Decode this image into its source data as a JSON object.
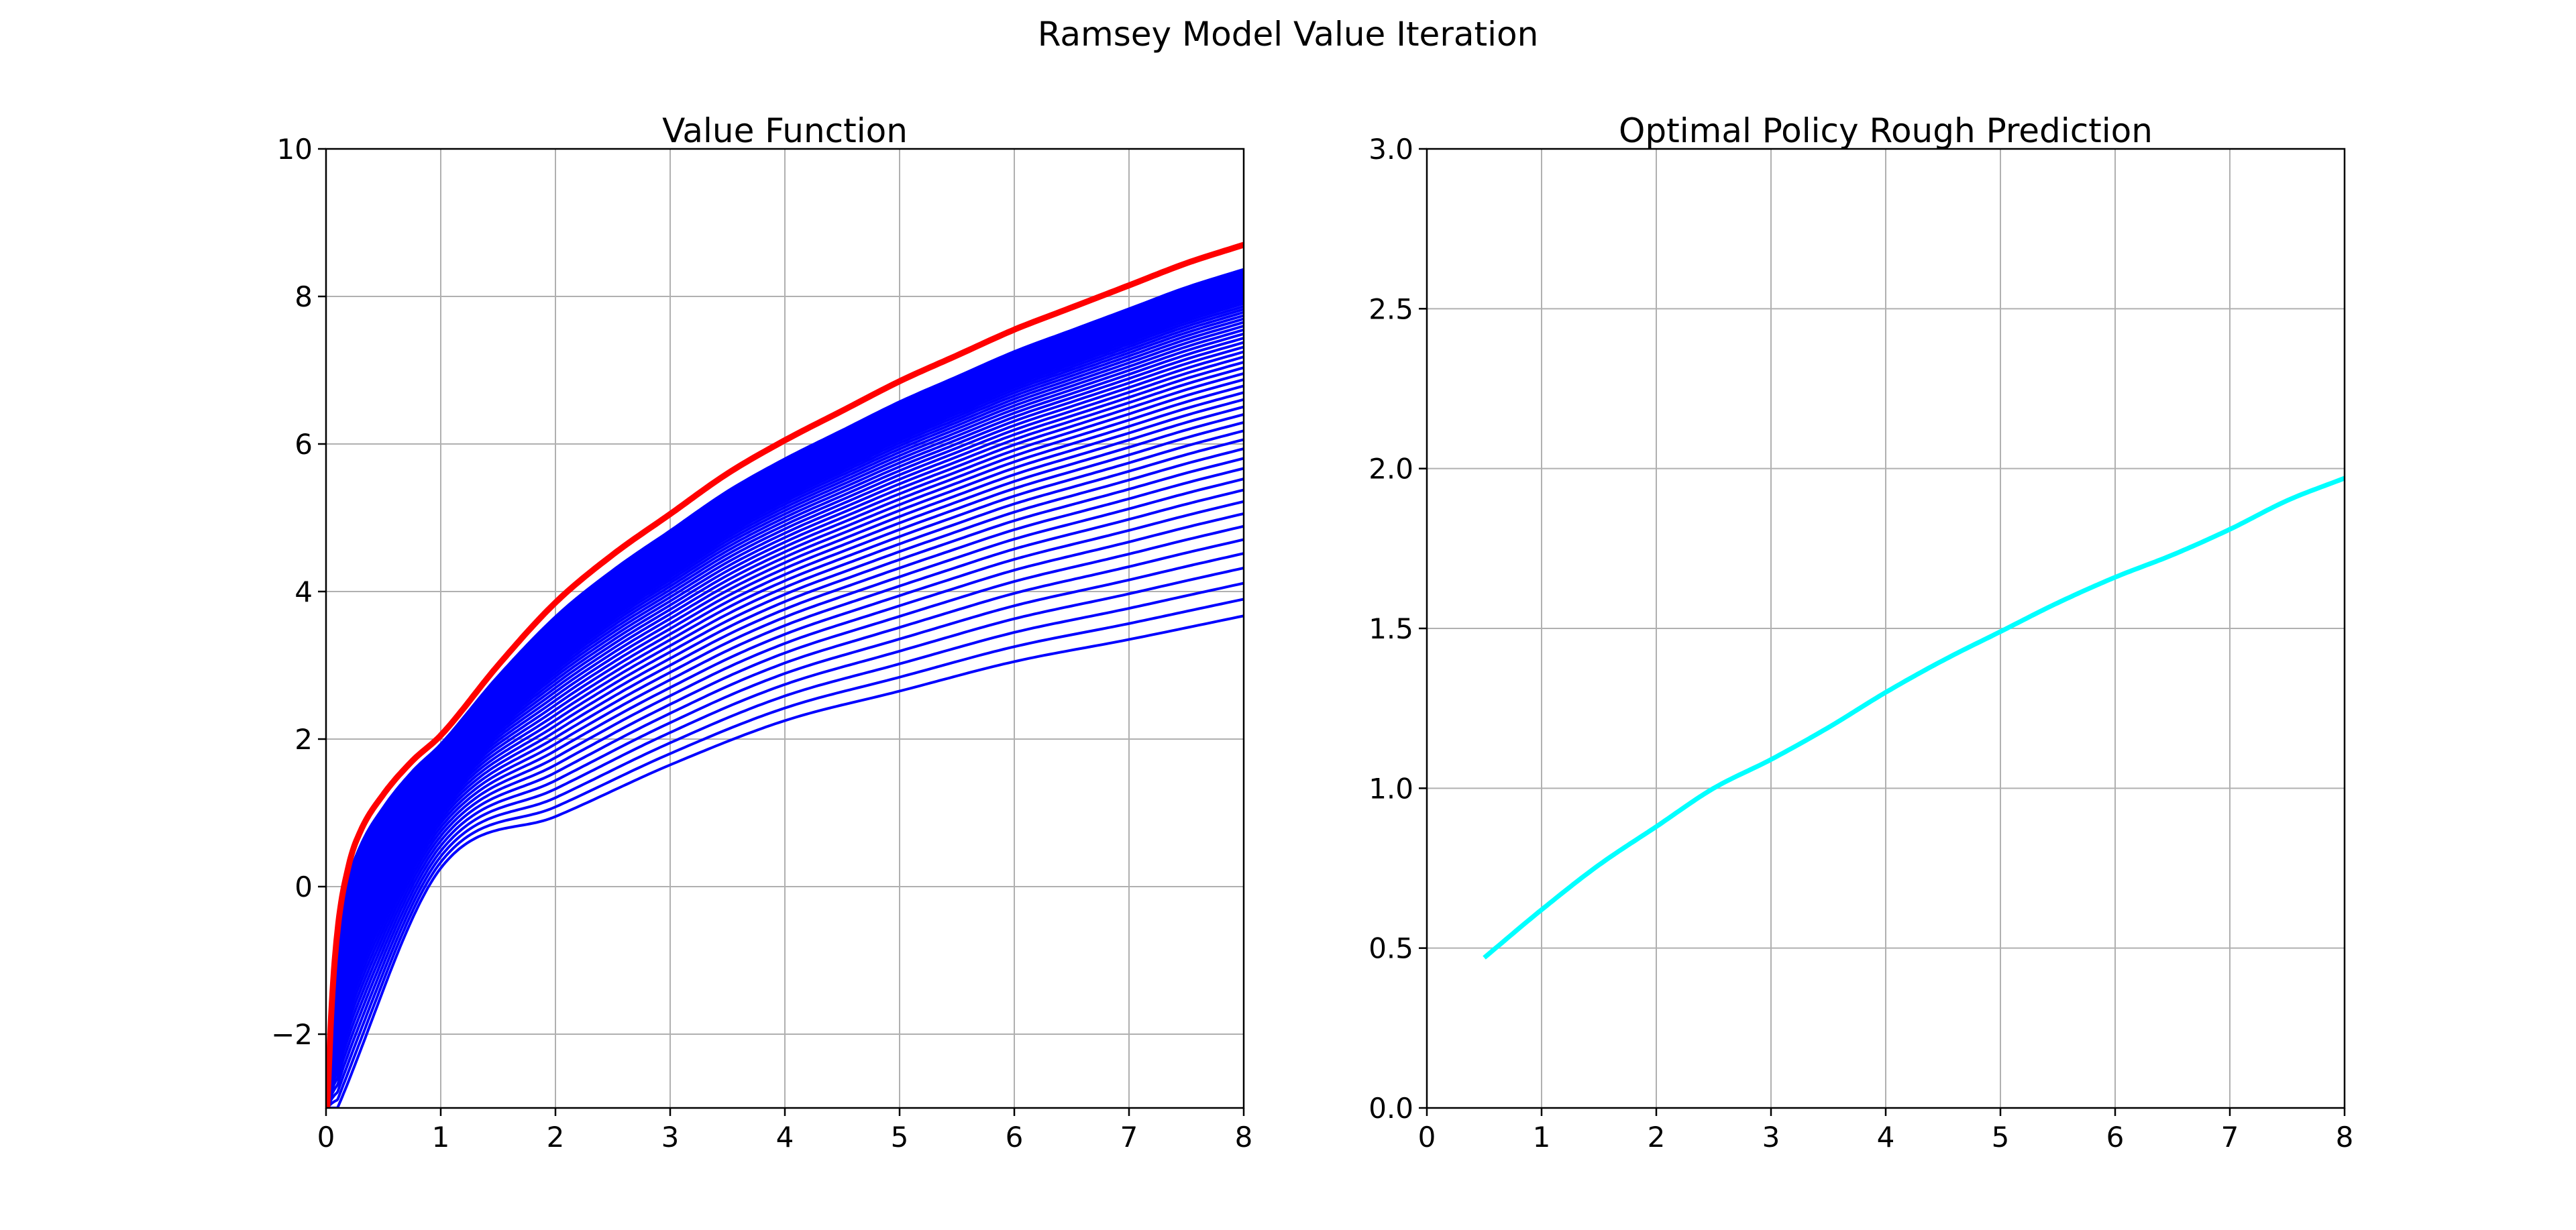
{
  "figure": {
    "title": "Ramsey Model Value Iteration"
  },
  "chart_data": [
    {
      "type": "line",
      "title": "Value Function",
      "xlabel": "",
      "ylabel": "",
      "xlim": [
        0,
        8
      ],
      "ylim": [
        -3,
        10
      ],
      "xticks": [
        0,
        1,
        2,
        3,
        4,
        5,
        6,
        7,
        8
      ],
      "xtick_labels": [
        "0",
        "1",
        "2",
        "3",
        "4",
        "5",
        "6",
        "7",
        "8"
      ],
      "yticks": [
        -2,
        0,
        2,
        4,
        6,
        8,
        10
      ],
      "ytick_labels": [
        "−2",
        "0",
        "2",
        "4",
        "6",
        "8",
        "10"
      ],
      "grid": true,
      "legend": "none",
      "iterations": {
        "count": 60,
        "color": "#0000ff",
        "first_iterate_at_x": [
          0.1,
          1,
          2,
          3,
          4,
          5,
          6,
          7,
          8
        ],
        "first_iterate_y": [
          -3.0,
          0.25,
          0.95,
          1.65,
          2.25,
          2.65,
          3.05,
          3.35,
          3.67
        ],
        "converged_y": [
          -3.0,
          2.05,
          3.85,
          5.05,
          6.05,
          6.85,
          7.55,
          8.15,
          8.7
        ]
      },
      "series": [
        {
          "color": "#ff0000",
          "x": [
            0.01,
            0.05,
            0.1,
            0.2,
            0.3,
            0.5,
            0.75,
            1,
            1.5,
            2,
            2.5,
            3,
            3.5,
            4,
            4.5,
            5,
            5.5,
            6,
            6.5,
            7,
            7.5,
            8
          ],
          "y": [
            -3.0,
            -1.6,
            -0.6,
            0.3,
            0.75,
            1.25,
            1.7,
            2.05,
            3.0,
            3.85,
            4.5,
            5.05,
            5.6,
            6.05,
            6.45,
            6.85,
            7.2,
            7.55,
            7.85,
            8.15,
            8.45,
            8.7
          ]
        }
      ]
    },
    {
      "type": "line",
      "title": "Optimal Policy Rough Prediction",
      "xlabel": "",
      "ylabel": "",
      "xlim": [
        0,
        8
      ],
      "ylim": [
        0,
        3
      ],
      "xticks": [
        0,
        1,
        2,
        3,
        4,
        5,
        6,
        7,
        8
      ],
      "xtick_labels": [
        "0",
        "1",
        "2",
        "3",
        "4",
        "5",
        "6",
        "7",
        "8"
      ],
      "yticks": [
        0,
        0.5,
        1,
        1.5,
        2,
        2.5,
        3
      ],
      "ytick_labels": [
        "0.0",
        "0.5",
        "1.0",
        "1.5",
        "2.0",
        "2.5",
        "3.0"
      ],
      "grid": true,
      "legend": "none",
      "series": [
        {
          "color": "#00ffff",
          "x": [
            0.5,
            1,
            1.5,
            2,
            2.5,
            3,
            3.5,
            4,
            4.5,
            5,
            5.5,
            6,
            6.5,
            7,
            7.5,
            8
          ],
          "y": [
            0.47,
            0.62,
            0.76,
            0.88,
            1.0,
            1.09,
            1.19,
            1.3,
            1.4,
            1.49,
            1.58,
            1.66,
            1.73,
            1.81,
            1.9,
            1.97
          ]
        }
      ]
    }
  ]
}
